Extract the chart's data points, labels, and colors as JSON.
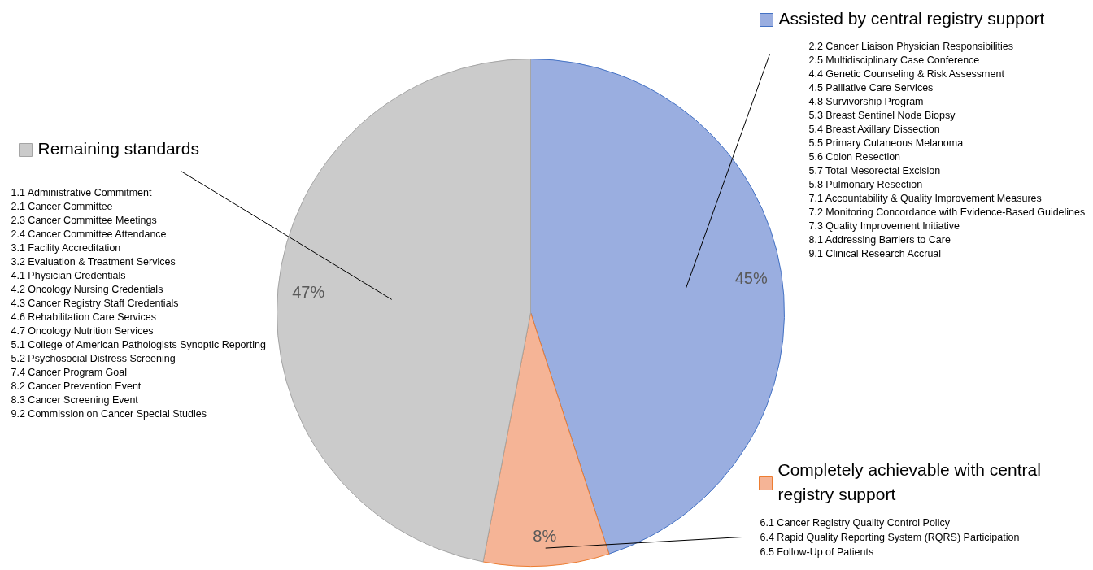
{
  "chart_data": {
    "type": "pie",
    "categories": [
      "Assisted by central registry support",
      "Completely achievable with central registry support",
      "Remaining standards"
    ],
    "values": [
      45,
      8,
      47
    ],
    "colors": [
      "#9aaee0",
      "#f5b496",
      "#cbcbcb"
    ],
    "value_labels": [
      "45%",
      "8%",
      "47%"
    ],
    "legend": "right",
    "annotations": [
      "2.2 Cancer Liaison Physician Responsibilities\n2.5 Multidisciplinary Case Conference\n4.4 Genetic Counseling & Risk Assessment\n4.5 Palliative Care Services\n4.8 Survivorship Program\n5.3 Breast Sentinel Node Biopsy\n5.4 Breast Axillary Dissection\n5.5 Primary Cutaneous Melanoma\n5.6 Colon Resection\n5.7 Total Mesorectal Excision\n5.8 Pulmonary Resection\n7.1 Accountability & Quality Improvement Measures\n7.2 Monitoring Concordance with Evidence-Based Guidelines\n7.3 Quality Improvement Initiative\n8.1 Addressing Barriers to Care\n9.1 Clinical Research Accrual",
      "6.1 Cancer Registry Quality Control Policy\n6.4 Rapid Quality Reporting System (RQRS) Participation\n6.5 Follow-Up of Patients",
      "1.1 Administrative Commitment\n2.1 Cancer Committee\n2.3 Cancer Committee Meetings\n2.4 Cancer Committee Attendance\n3.1 Facility Accreditation\n3.2 Evaluation & Treatment Services\n4.1 Physician Credentials\n4.2 Oncology Nursing Credentials\n4.3 Cancer Registry Staff Credentials\n4.6 Rehabilitation Care Services\n4.7 Oncology Nutrition Services\n5.1 College of American Pathologists Synoptic Reporting\n5.2 Psychosocial Distress Screening\n7.4 Cancer Program Goal\n8.2 Cancer Prevention Event\n8.3 Cancer Screening Event\n9.2 Commission on Cancer Special Studies"
    ]
  }
}
